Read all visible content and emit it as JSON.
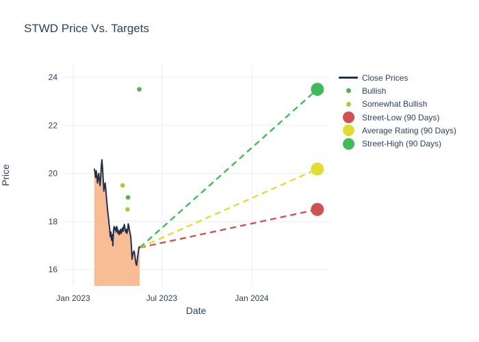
{
  "title": "STWD Price Vs. Targets",
  "colors": {
    "text": "#2a3f5f",
    "gridline": "#e6edf7",
    "background": "#ffffff",
    "close_line": "#22304e",
    "close_fill": "#f9bd96",
    "bullish": "#4cb84c",
    "somewhat_bullish": "#a5cc3e",
    "street_low": "#d05151",
    "average_rating": "#dfdd33",
    "street_high": "#41ba5a"
  },
  "chart_data": {
    "type": "line",
    "title": "STWD Price Vs. Targets",
    "xlabel": "Date",
    "ylabel": "Price",
    "grid": true,
    "legend_position": "right",
    "x_axis": {
      "ticks": [
        {
          "label": "Jan 2023",
          "date": "2023-01-01"
        },
        {
          "label": "Jul 2023",
          "date": "2023-07-01"
        },
        {
          "label": "Jan 2024",
          "date": "2024-01-01"
        }
      ],
      "range": [
        "2022-12-11",
        "2024-06-04"
      ]
    },
    "y_axis": {
      "ticks": [
        16,
        18,
        20,
        22,
        24
      ],
      "range": [
        15.3,
        24.5
      ]
    },
    "close_prices": {
      "name": "Close Prices",
      "color": "#22304e",
      "fill_color": "#f9bd96",
      "start_date": "2023-02-13",
      "end_date": "2023-05-17",
      "last_price": 16.91,
      "prices": [
        20.2,
        20.06,
        19.83,
        20.11,
        19.89,
        19.6,
        19.83,
        20.0,
        19.72,
        19.49,
        19.83,
        20.34,
        20.57,
        20.2,
        19.72,
        19.26,
        19.49,
        19.6,
        19.35,
        19.01,
        18.7,
        18.41,
        18.18,
        17.93,
        17.7,
        17.36,
        17.56,
        17.22,
        17.45,
        16.99,
        17.59,
        17.79,
        17.65,
        17.73,
        17.56,
        17.79,
        17.7,
        17.5,
        17.62,
        17.45,
        17.56,
        17.67,
        17.5,
        17.62,
        17.73,
        17.59,
        17.79,
        17.87,
        17.7,
        17.56,
        17.67,
        17.5,
        17.62,
        17.9,
        17.81,
        17.62,
        17.5,
        17.36,
        16.94,
        16.43,
        16.6,
        16.71,
        16.77,
        16.65,
        16.45,
        16.26,
        16.17,
        16.37,
        16.6,
        16.79,
        16.94,
        16.91
      ]
    },
    "ratings": [
      {
        "name": "Bullish",
        "color": "#4cb84c",
        "points": [
          {
            "date": "2023-05-16",
            "price": 23.5
          },
          {
            "date": "2023-04-23",
            "price": 19.0
          }
        ]
      },
      {
        "name": "Somewhat Bullish",
        "color": "#a5cc3e",
        "points": [
          {
            "date": "2023-04-12",
            "price": 19.5
          },
          {
            "date": "2023-04-22",
            "price": 18.5
          }
        ]
      }
    ],
    "targets": [
      {
        "name": "Street-Low (90 Days)",
        "color": "#d05151",
        "date": "2024-05-14",
        "price": 18.5
      },
      {
        "name": "Average Rating (90 Days)",
        "color": "#dfdd33",
        "date": "2024-05-14",
        "price": 20.18
      },
      {
        "name": "Street-High (90 Days)",
        "color": "#41ba5a",
        "date": "2024-05-14",
        "price": 23.5
      }
    ]
  },
  "legend": {
    "items": [
      {
        "label": "Close Prices",
        "swatch": "line",
        "color": "#22304e"
      },
      {
        "label": "Bullish",
        "swatch": "dot-small",
        "color": "#4cb84c"
      },
      {
        "label": "Somewhat Bullish",
        "swatch": "dot-small",
        "color": "#a5cc3e"
      },
      {
        "label": "Street-Low (90 Days)",
        "swatch": "dot-large",
        "color": "#d05151"
      },
      {
        "label": "Average Rating (90 Days)",
        "swatch": "dot-large",
        "color": "#dfdd33"
      },
      {
        "label": "Street-High (90 Days)",
        "swatch": "dot-large",
        "color": "#41ba5a"
      }
    ]
  }
}
